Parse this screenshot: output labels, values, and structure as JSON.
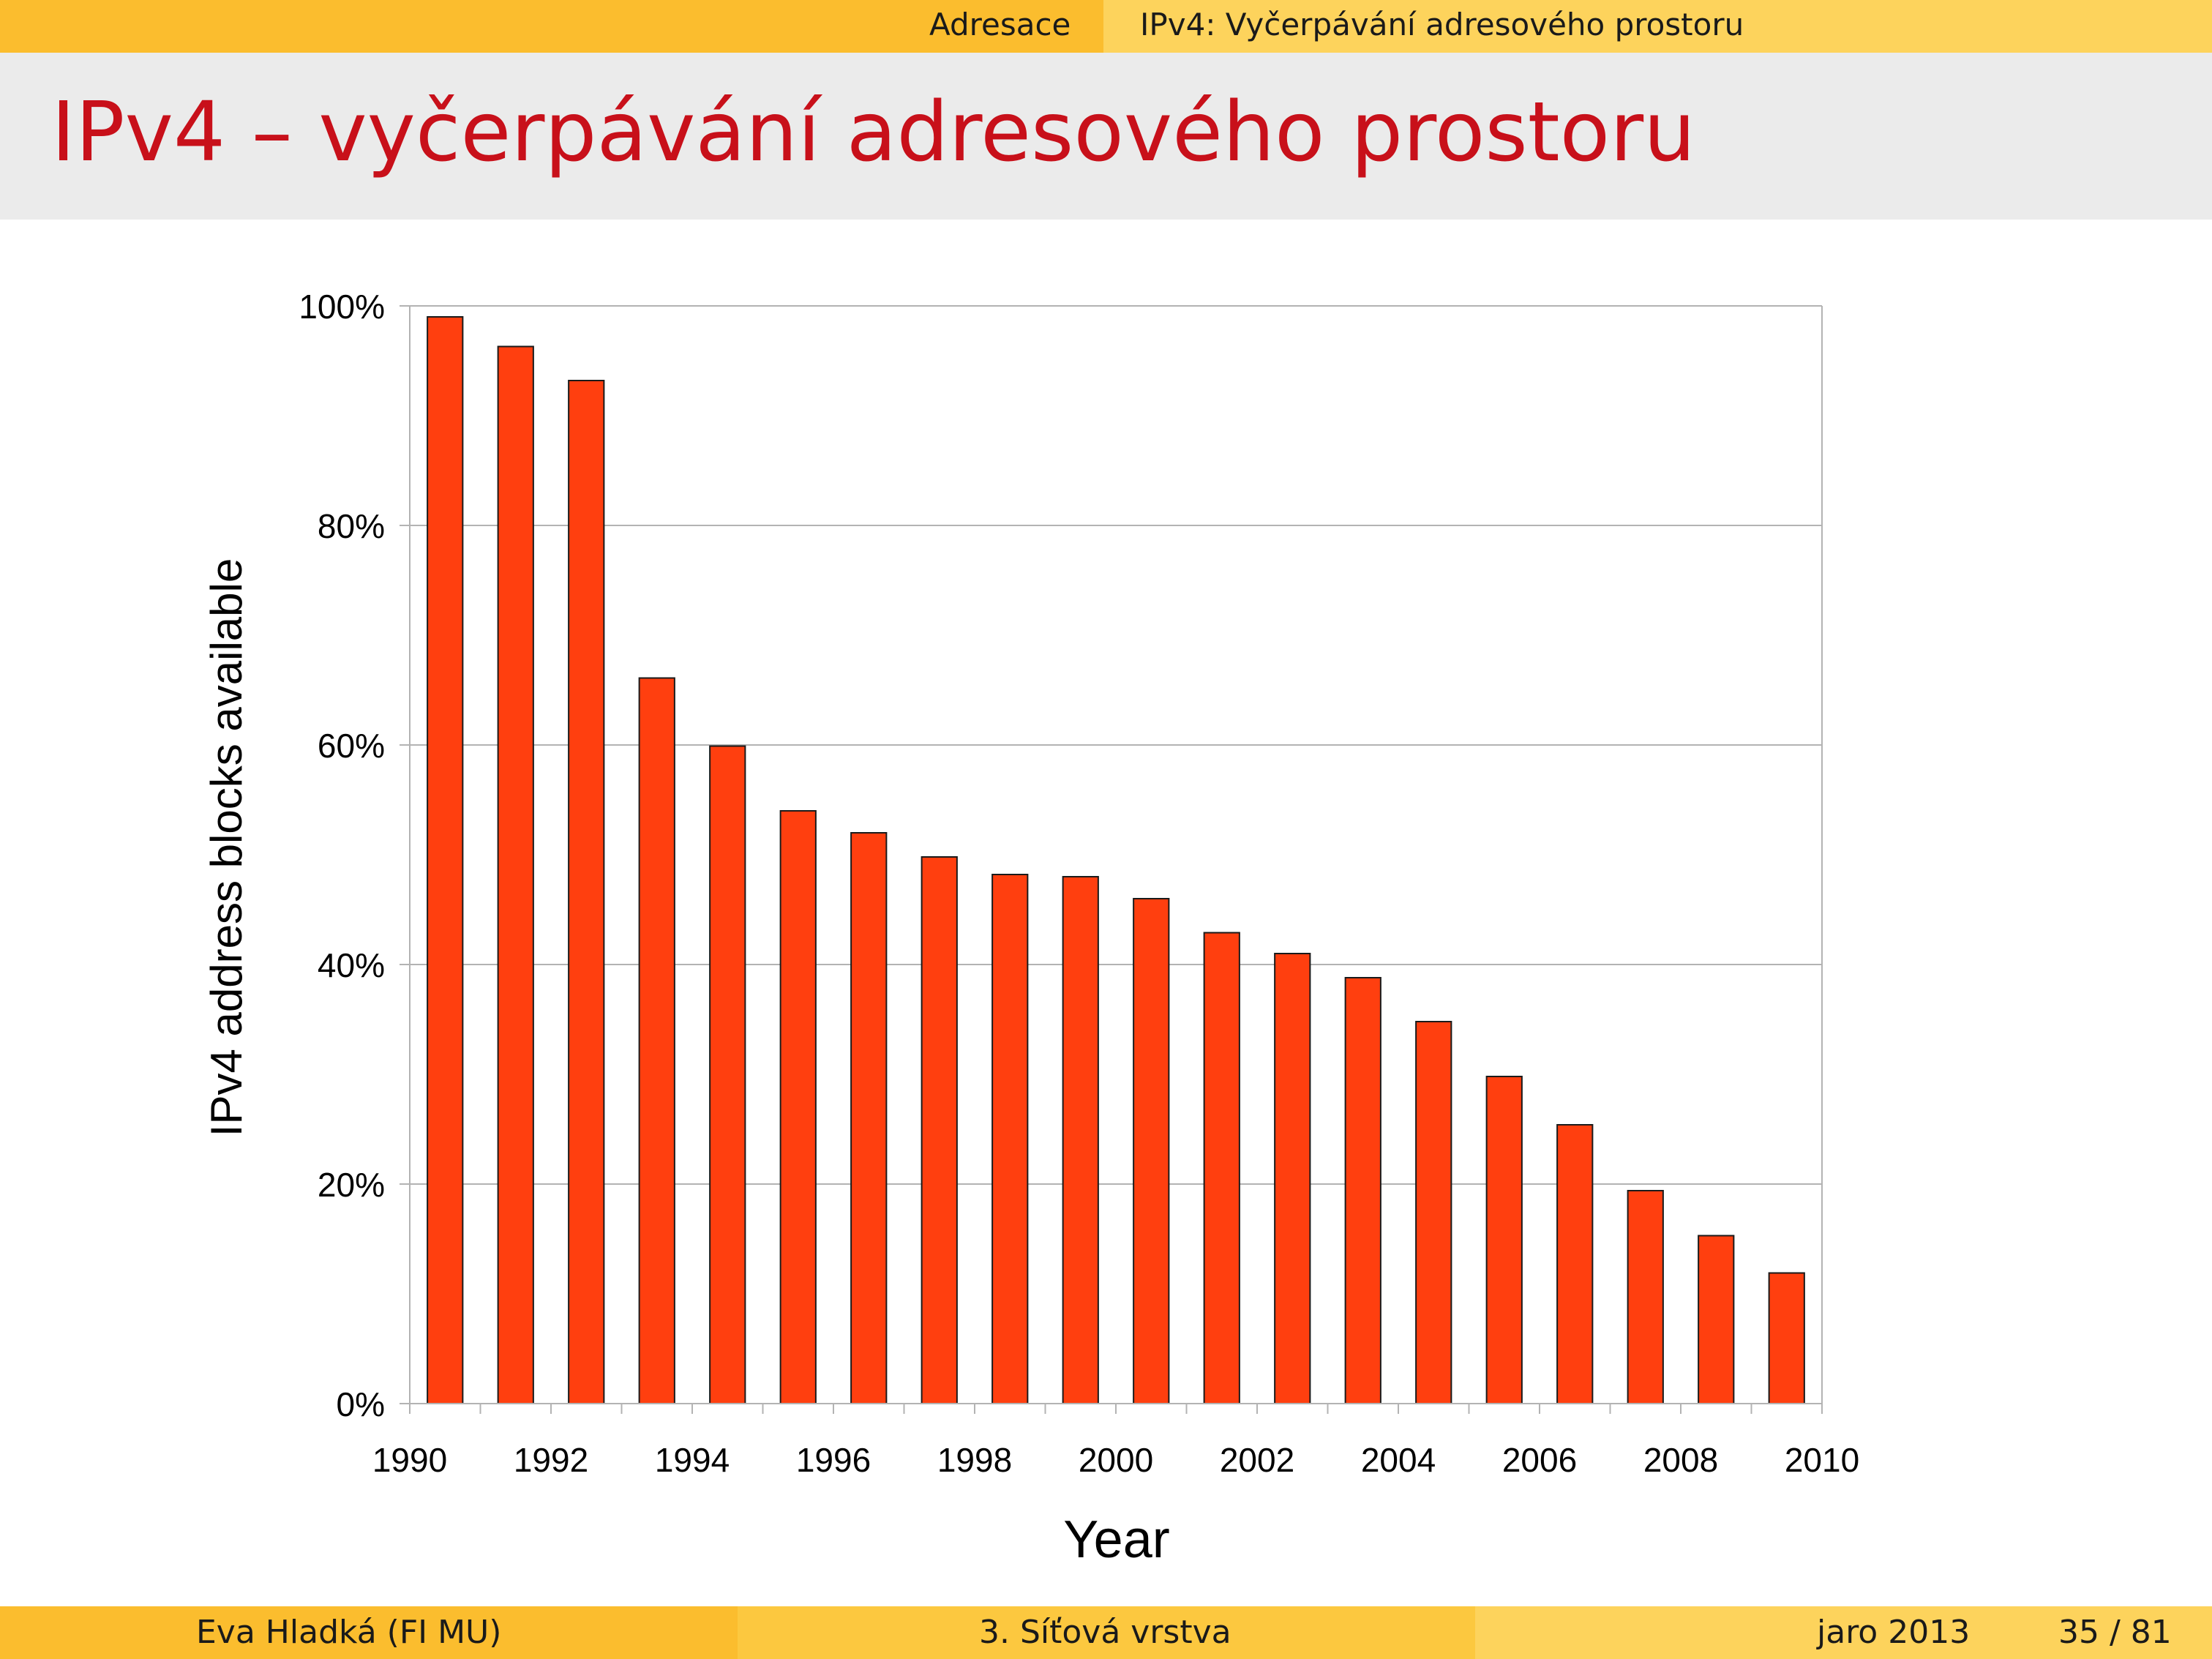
{
  "header": {
    "section": "Adresace",
    "subsection": "IPv4: Vyčerpávání adresového prostoru"
  },
  "frame_title": "IPv4 – vyčerpávání adresového prostoru",
  "footer": {
    "author": "Eva Hladká (FI MU)",
    "section": "3. Síťová vrstva",
    "date": "jaro 2013",
    "page": "35 / 81"
  },
  "colors": {
    "bar_fill": "#ff3f0f",
    "bar_stroke": "#1a1a1a",
    "header_bar": "#fbbd2e",
    "title_text": "#c8101a",
    "title_band": "#ebebeb"
  },
  "chart_data": {
    "type": "bar",
    "title": "",
    "xlabel": "Year",
    "ylabel": "IPv4 address blocks available",
    "x": [
      1990,
      1991,
      1992,
      1993,
      1994,
      1995,
      1996,
      1997,
      1998,
      1999,
      2000,
      2001,
      2002,
      2003,
      2004,
      2005,
      2006,
      2007,
      2008,
      2009
    ],
    "values": [
      99,
      96.3,
      93.2,
      66.1,
      59.9,
      54,
      52,
      49.8,
      48.2,
      48,
      46,
      42.9,
      41,
      38.8,
      34.8,
      29.8,
      25.4,
      19.4,
      15.3,
      11.9
    ],
    "xlim": [
      1990,
      2010
    ],
    "ylim": [
      0,
      100
    ],
    "xticks": [
      "1990",
      "1992",
      "1994",
      "1996",
      "1998",
      "2000",
      "2002",
      "2004",
      "2006",
      "2008",
      "2010"
    ],
    "yticks": [
      "0%",
      "20%",
      "40%",
      "60%",
      "80%",
      "100%"
    ],
    "grid": "horizontal",
    "legend": "none"
  }
}
